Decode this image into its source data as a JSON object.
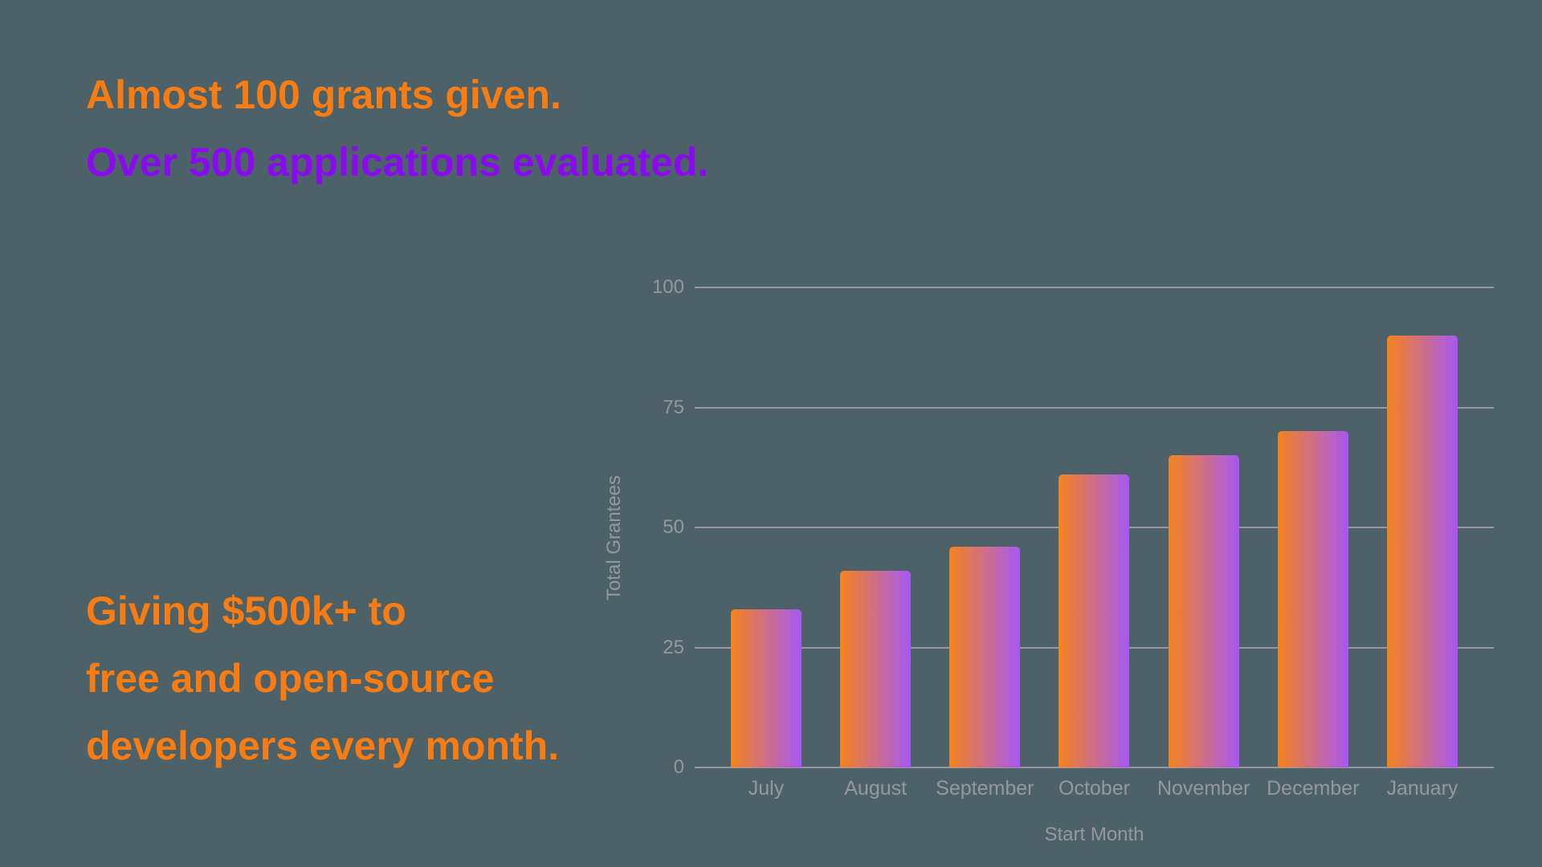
{
  "colors": {
    "background": "#4C6168",
    "headline_orange": "#F87C12",
    "headline_purple": "#8A0AF0",
    "bar_gradient_start": "#F5831D",
    "bar_gradient_end": "#A658F3",
    "gridline": "#9C96A2",
    "axis_text": "#96979C"
  },
  "headline": {
    "line1": "Almost 100 grants given.",
    "line2": "Over 500 applications evaluated."
  },
  "stats": {
    "line1": "Giving $500k+ to",
    "line2": "free and open-source",
    "line3": "developers every month."
  },
  "chart_data": {
    "type": "bar",
    "categories": [
      "July",
      "August",
      "September",
      "October",
      "November",
      "December",
      "January"
    ],
    "values": [
      33,
      41,
      46,
      61,
      65,
      70,
      90
    ],
    "title": "",
    "xlabel": "Start Month",
    "ylabel": "Total Grantees",
    "yticks": [
      0,
      25,
      50,
      75,
      100
    ],
    "ylim": [
      0,
      100
    ],
    "grid": true,
    "legend": "none",
    "bar_gradient": [
      "#F5831D",
      "#A658F3"
    ]
  }
}
